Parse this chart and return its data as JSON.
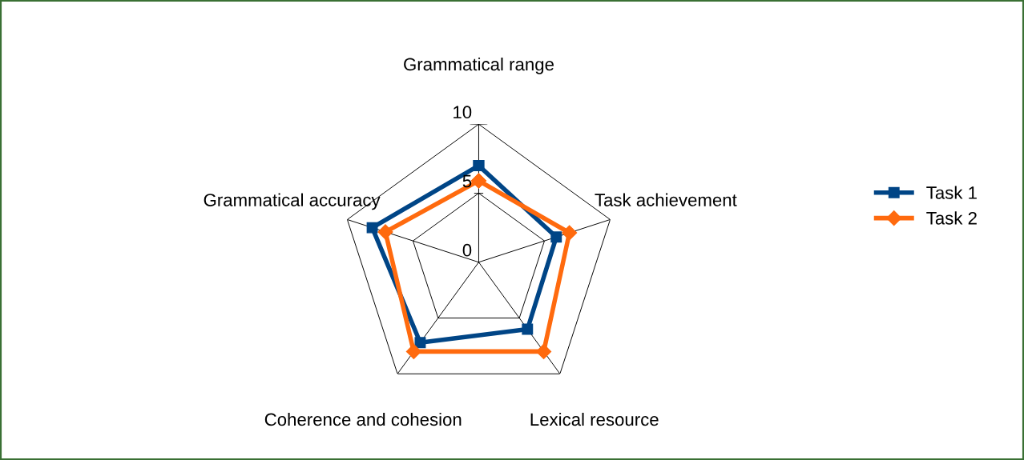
{
  "chart_data": {
    "type": "radar",
    "categories": [
      "Grammatical range",
      "Task achievement",
      "Lexical resource",
      "Coherence and cohesion",
      "Grammatical accuracy"
    ],
    "series": [
      {
        "name": "Task 1",
        "color": "#004586",
        "values": [
          7.0,
          5.9,
          6.0,
          7.2,
          8.1
        ]
      },
      {
        "name": "Task 2",
        "color": "#ff6a0e",
        "values": [
          5.9,
          6.9,
          8.0,
          8.0,
          7.1
        ]
      }
    ],
    "ylim": [
      0,
      10
    ],
    "yticks": [
      0,
      5,
      10
    ],
    "grid": true,
    "legend": "right",
    "marker": "square"
  }
}
